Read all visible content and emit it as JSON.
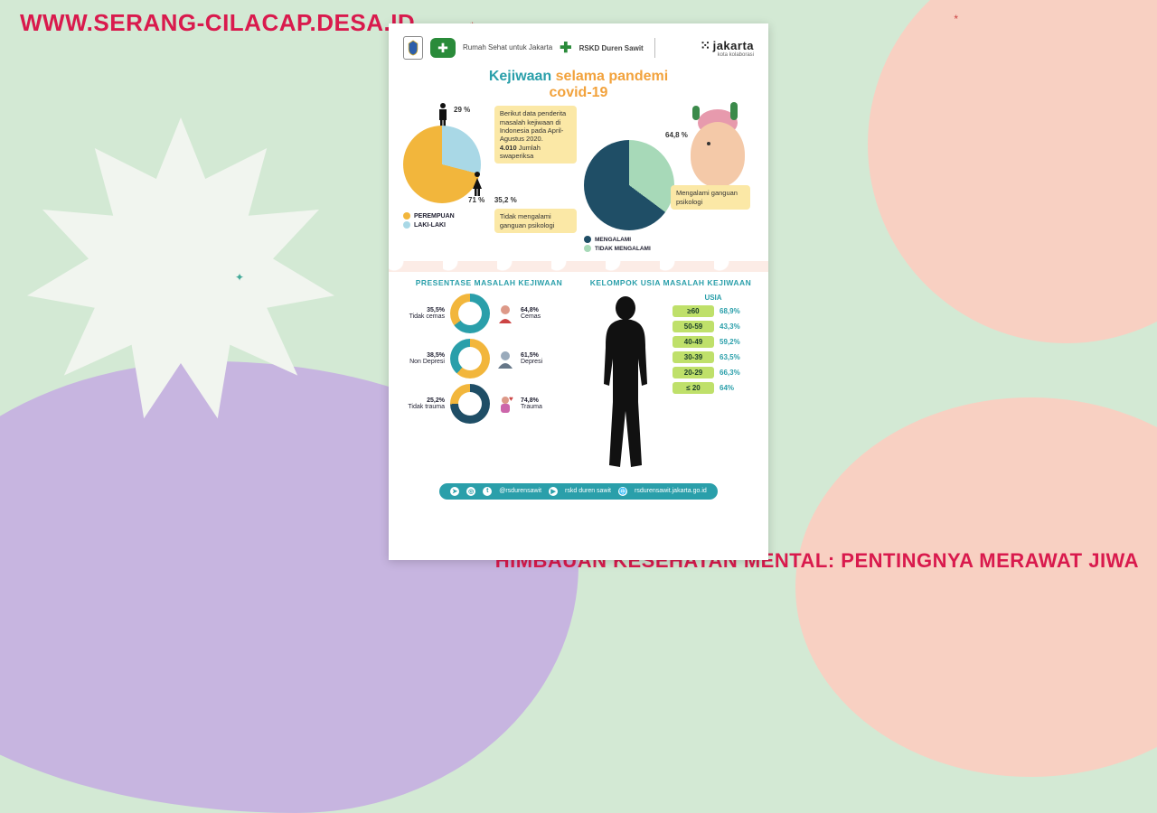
{
  "page": {
    "watermark": "WWW.SERANG-CILACAP.DESA.ID",
    "caption": "HIMBAUAN KESEHATAN MENTAL: PENTINGNYA MERAWAT JIWA",
    "bg_colors": {
      "base": "#d3e9d4",
      "pink": "#f8d0c2",
      "purple": "#c7b5e0",
      "star": "#f1f5ef"
    },
    "text_accent": "#d91a4d"
  },
  "header": {
    "org1": "DKI",
    "org2_text": "Rumah Sehat untuk Jakarta",
    "org3": "RSKD Duren Sawit",
    "brand": "jakarta",
    "brand_sub": "kota kolaborasi"
  },
  "title": {
    "line1a": "Kejiwaan ",
    "line1b": "selama pandemi",
    "line2": "covid-19"
  },
  "gender_pie": {
    "type": "pie",
    "slices": [
      {
        "label": "PEREMPUAN",
        "value": 71,
        "color": "#f2b63c"
      },
      {
        "label": "LAKI-LAKI",
        "value": 29,
        "color": "#a9d8e6"
      }
    ],
    "pct_female": "71 %",
    "pct_male": "29 %"
  },
  "intro_note": {
    "text1": "Berikut data penderita masalah kejiwaan di Indonesia pada April-Agustus 2020.",
    "figure": "4.010",
    "figure_label": "Jumlah swaperiksa"
  },
  "psych_pie": {
    "type": "pie",
    "slices": [
      {
        "label": "MENGALAMI",
        "value": 64.8,
        "color": "#1f4e66"
      },
      {
        "label": "TIDAK MENGALAMI",
        "value": 35.2,
        "color": "#a7d9b8"
      }
    ],
    "pct_yes": "64,8 %",
    "txt_yes": "Mengalami ganguan psikologi",
    "pct_no": "35,2 %",
    "txt_no": "Tidak mengalami ganguan psikologi"
  },
  "problems": {
    "heading": "PRESENTASE MASALAH KEJIWAAN",
    "items": [
      {
        "neg_pct": "35,5%",
        "neg_label": "Tidak cemas",
        "pos_pct": "64,8%",
        "pos_label": "Cemas",
        "colors": {
          "pos": "#2a9faa",
          "neg": "#f2b63c"
        }
      },
      {
        "neg_pct": "38,5%",
        "neg_label": "Non Depresi",
        "pos_pct": "61,5%",
        "pos_label": "Depresi",
        "colors": {
          "pos": "#f2b63c",
          "neg": "#2a9faa"
        }
      },
      {
        "neg_pct": "25,2%",
        "neg_label": "Tidak trauma",
        "pos_pct": "74,8%",
        "pos_label": "Trauma",
        "colors": {
          "pos": "#1f4e66",
          "neg": "#f2b63c"
        }
      }
    ]
  },
  "age": {
    "heading": "KELOMPOK USIA MASALAH KEJIWAAN",
    "col_label": "USIA",
    "rows": [
      {
        "range": "≥60",
        "pct": "68,9%"
      },
      {
        "range": "50-59",
        "pct": "43,3%"
      },
      {
        "range": "40-49",
        "pct": "59,2%"
      },
      {
        "range": "30-39",
        "pct": "63,5%"
      },
      {
        "range": "20-29",
        "pct": "66,3%"
      },
      {
        "range": "≤ 20",
        "pct": "64%"
      }
    ],
    "pill_color": "#bfe06a",
    "pct_color": "#2a9faa"
  },
  "footer": {
    "handle1": "@rsdurensawit",
    "handle2": "rskd duren sawit",
    "site": "rsdurensawit.jakarta.go.id"
  }
}
